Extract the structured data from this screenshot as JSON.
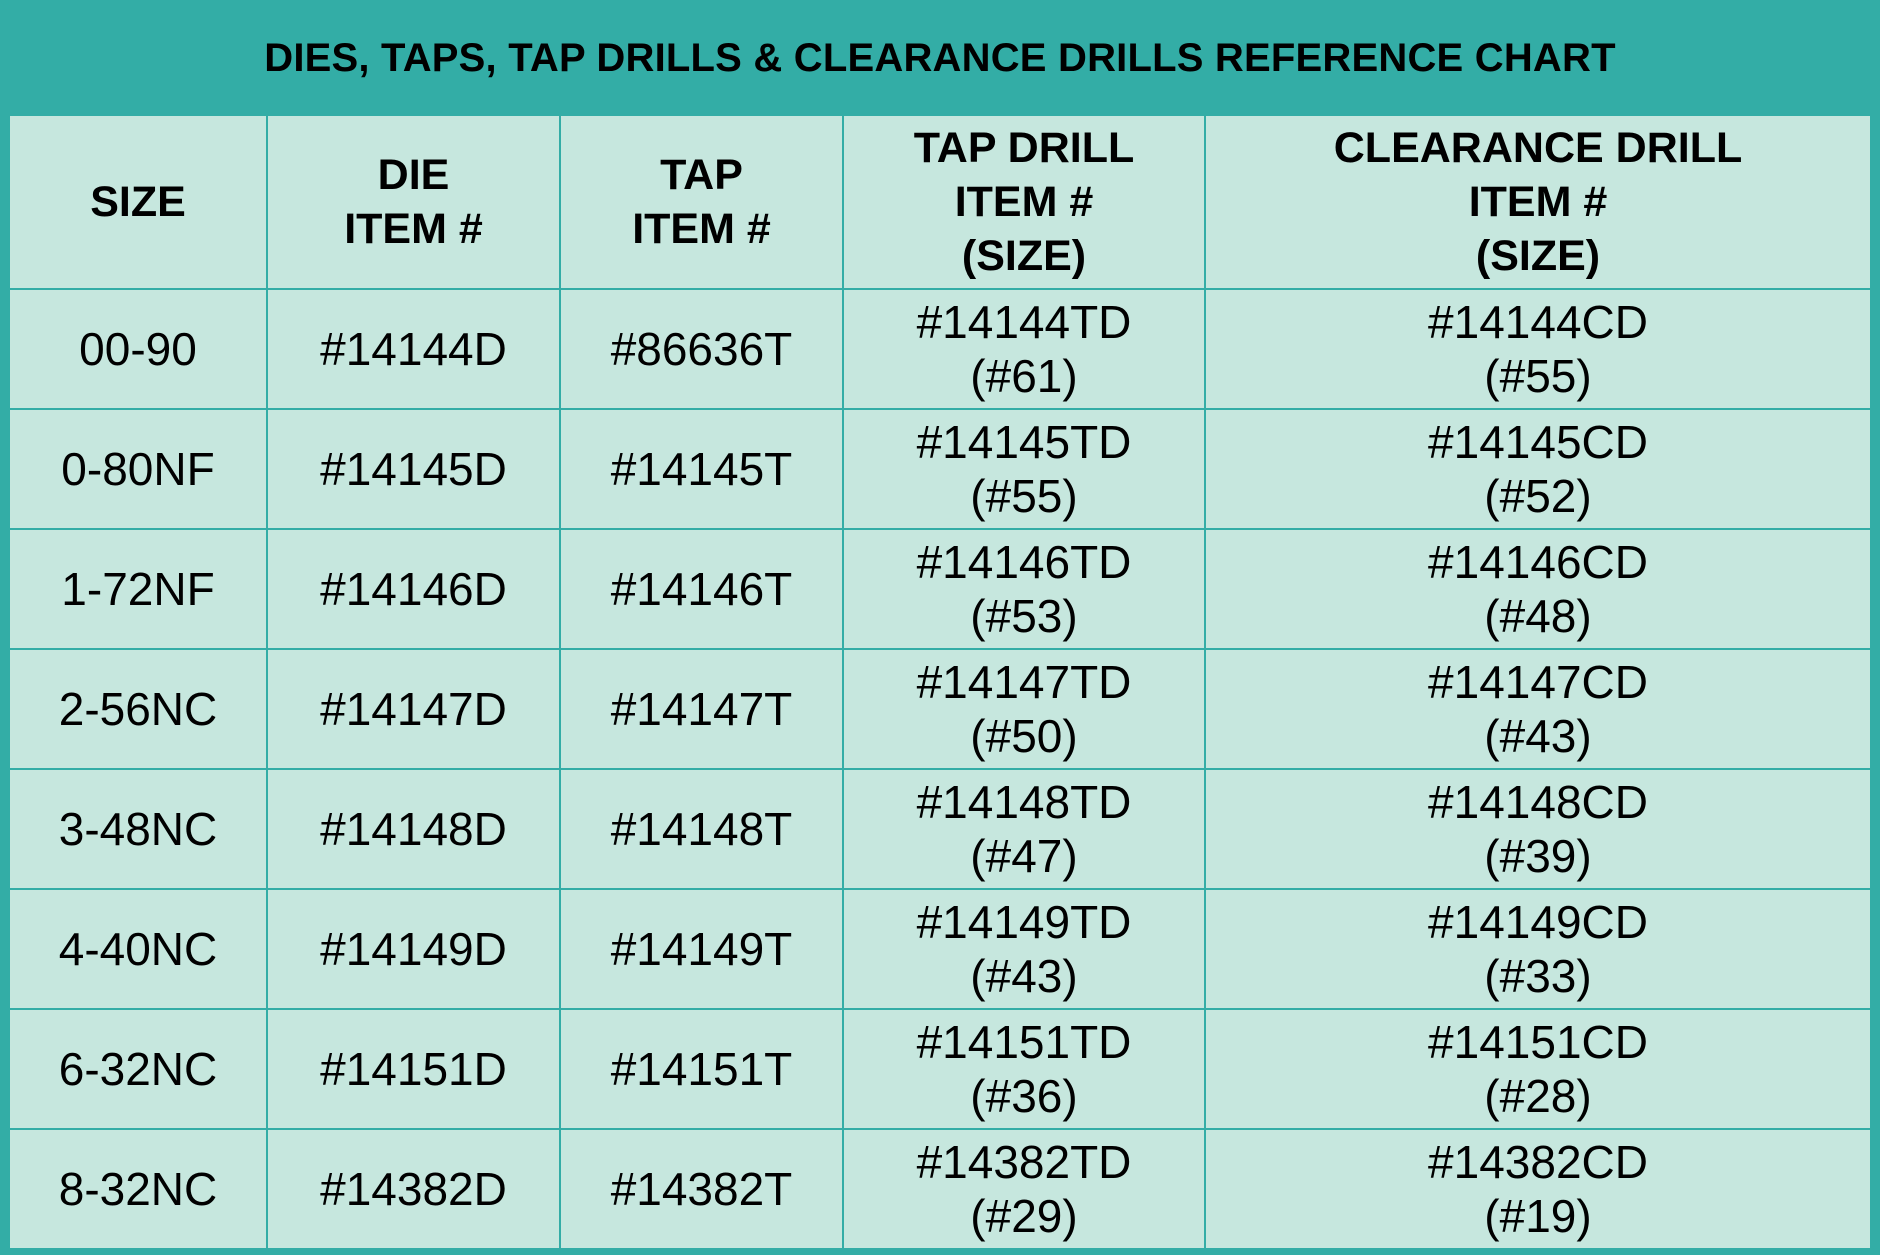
{
  "title": "DIES, TAPS, TAP DRILLS & CLEARANCE DRILLS REFERENCE CHART",
  "colors": {
    "frame": "#33ada6",
    "cell_bg": "#c6e7de",
    "text": "#000000"
  },
  "headers": [
    [
      "SIZE"
    ],
    [
      "DIE",
      "ITEM #"
    ],
    [
      "TAP",
      "ITEM #"
    ],
    [
      "TAP DRILL",
      "ITEM #",
      "(SIZE)"
    ],
    [
      "CLEARANCE DRILL",
      "ITEM #",
      "(SIZE)"
    ]
  ],
  "rows": [
    {
      "size": "00-90",
      "die": "#14144D",
      "tap": "#86636T",
      "tap_drill": "#14144TD",
      "tap_drill_size": "(#61)",
      "clearance_drill": "#14144CD",
      "clearance_drill_size": "(#55)"
    },
    {
      "size": "0-80NF",
      "die": "#14145D",
      "tap": "#14145T",
      "tap_drill": "#14145TD",
      "tap_drill_size": "(#55)",
      "clearance_drill": "#14145CD",
      "clearance_drill_size": "(#52)"
    },
    {
      "size": "1-72NF",
      "die": "#14146D",
      "tap": "#14146T",
      "tap_drill": "#14146TD",
      "tap_drill_size": "(#53)",
      "clearance_drill": "#14146CD",
      "clearance_drill_size": "(#48)"
    },
    {
      "size": "2-56NC",
      "die": "#14147D",
      "tap": "#14147T",
      "tap_drill": "#14147TD",
      "tap_drill_size": "(#50)",
      "clearance_drill": "#14147CD",
      "clearance_drill_size": "(#43)"
    },
    {
      "size": "3-48NC",
      "die": "#14148D",
      "tap": "#14148T",
      "tap_drill": "#14148TD",
      "tap_drill_size": "(#47)",
      "clearance_drill": "#14148CD",
      "clearance_drill_size": "(#39)"
    },
    {
      "size": "4-40NC",
      "die": "#14149D",
      "tap": "#14149T",
      "tap_drill": "#14149TD",
      "tap_drill_size": "(#43)",
      "clearance_drill": "#14149CD",
      "clearance_drill_size": "(#33)"
    },
    {
      "size": "6-32NC",
      "die": "#14151D",
      "tap": "#14151T",
      "tap_drill": "#14151TD",
      "tap_drill_size": "(#36)",
      "clearance_drill": "#14151CD",
      "clearance_drill_size": "(#28)"
    },
    {
      "size": "8-32NC",
      "die": "#14382D",
      "tap": "#14382T",
      "tap_drill": "#14382TD",
      "tap_drill_size": "(#29)",
      "clearance_drill": "#14382CD",
      "clearance_drill_size": "(#19)"
    }
  ]
}
